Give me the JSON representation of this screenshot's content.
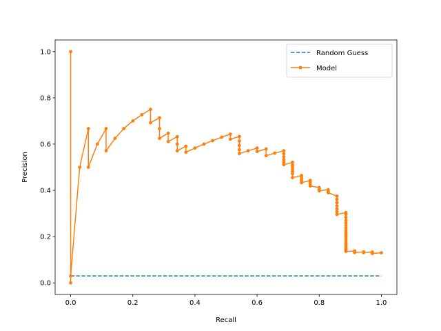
{
  "chart_data": {
    "type": "line",
    "xlabel": "Recall",
    "ylabel": "Precision",
    "xlim": [
      -0.05,
      1.05
    ],
    "ylim": [
      -0.05,
      1.05
    ],
    "xticks": [
      0.0,
      0.2,
      0.4,
      0.6,
      0.8,
      1.0
    ],
    "xtick_labels": [
      "0.0",
      "0.2",
      "0.4",
      "0.6",
      "0.8",
      "1.0"
    ],
    "yticks": [
      0.0,
      0.2,
      0.4,
      0.6,
      0.8,
      1.0
    ],
    "ytick_labels": [
      "0.0",
      "0.2",
      "0.4",
      "0.6",
      "0.8",
      "1.0"
    ],
    "grid": false,
    "legend_position": "top-right",
    "series": [
      {
        "name": "Random Guess",
        "style": "dashed",
        "color": "#1f77b4",
        "markers": false,
        "x": [
          0.0,
          1.0
        ],
        "y": [
          0.03,
          0.03
        ]
      },
      {
        "name": "Model",
        "style": "solid",
        "color": "#ff7f0e",
        "markers": true,
        "x": [
          0.0,
          0.0,
          0.0,
          0.029,
          0.057,
          0.057,
          0.086,
          0.114,
          0.114,
          0.143,
          0.171,
          0.2,
          0.229,
          0.257,
          0.257,
          0.286,
          0.286,
          0.286,
          0.314,
          0.314,
          0.343,
          0.343,
          0.343,
          0.371,
          0.371,
          0.4,
          0.429,
          0.457,
          0.486,
          0.514,
          0.514,
          0.543,
          0.543,
          0.543,
          0.543,
          0.543,
          0.571,
          0.6,
          0.6,
          0.629,
          0.629,
          0.657,
          0.686,
          0.686,
          0.686,
          0.686,
          0.686,
          0.686,
          0.714,
          0.714,
          0.714,
          0.714,
          0.714,
          0.714,
          0.714,
          0.743,
          0.743,
          0.743,
          0.743,
          0.743,
          0.771,
          0.771,
          0.771,
          0.771,
          0.8,
          0.8,
          0.8,
          0.829,
          0.829,
          0.829,
          0.857,
          0.857,
          0.857,
          0.857,
          0.857,
          0.857,
          0.857,
          0.886,
          0.886,
          0.886,
          0.886,
          0.886,
          0.886,
          0.886,
          0.886,
          0.886,
          0.886,
          0.886,
          0.886,
          0.886,
          0.886,
          0.886,
          0.886,
          0.886,
          0.886,
          0.886,
          0.914,
          0.914,
          0.943,
          0.943,
          0.971,
          0.971,
          1.0
        ],
        "y": [
          0.0,
          1.0,
          0.03,
          0.5,
          0.667,
          0.5,
          0.6,
          0.667,
          0.571,
          0.625,
          0.667,
          0.7,
          0.727,
          0.75,
          0.692,
          0.714,
          0.667,
          0.625,
          0.647,
          0.611,
          0.632,
          0.6,
          0.571,
          0.591,
          0.565,
          0.583,
          0.6,
          0.615,
          0.63,
          0.643,
          0.621,
          0.633,
          0.613,
          0.594,
          0.576,
          0.559,
          0.571,
          0.583,
          0.568,
          0.579,
          0.55,
          0.561,
          0.571,
          0.558,
          0.545,
          0.533,
          0.522,
          0.511,
          0.521,
          0.51,
          0.5,
          0.49,
          0.481,
          0.472,
          0.455,
          0.464,
          0.456,
          0.448,
          0.441,
          0.433,
          0.443,
          0.435,
          0.427,
          0.419,
          0.412,
          0.405,
          0.398,
          0.403,
          0.396,
          0.39,
          0.375,
          0.361,
          0.347,
          0.333,
          0.32,
          0.308,
          0.296,
          0.304,
          0.296,
          0.283,
          0.27,
          0.259,
          0.248,
          0.237,
          0.227,
          0.218,
          0.209,
          0.2,
          0.19,
          0.18,
          0.171,
          0.163,
          0.155,
          0.147,
          0.14,
          0.136,
          0.138,
          0.131,
          0.134,
          0.131,
          0.133,
          0.127,
          0.13
        ]
      }
    ]
  }
}
